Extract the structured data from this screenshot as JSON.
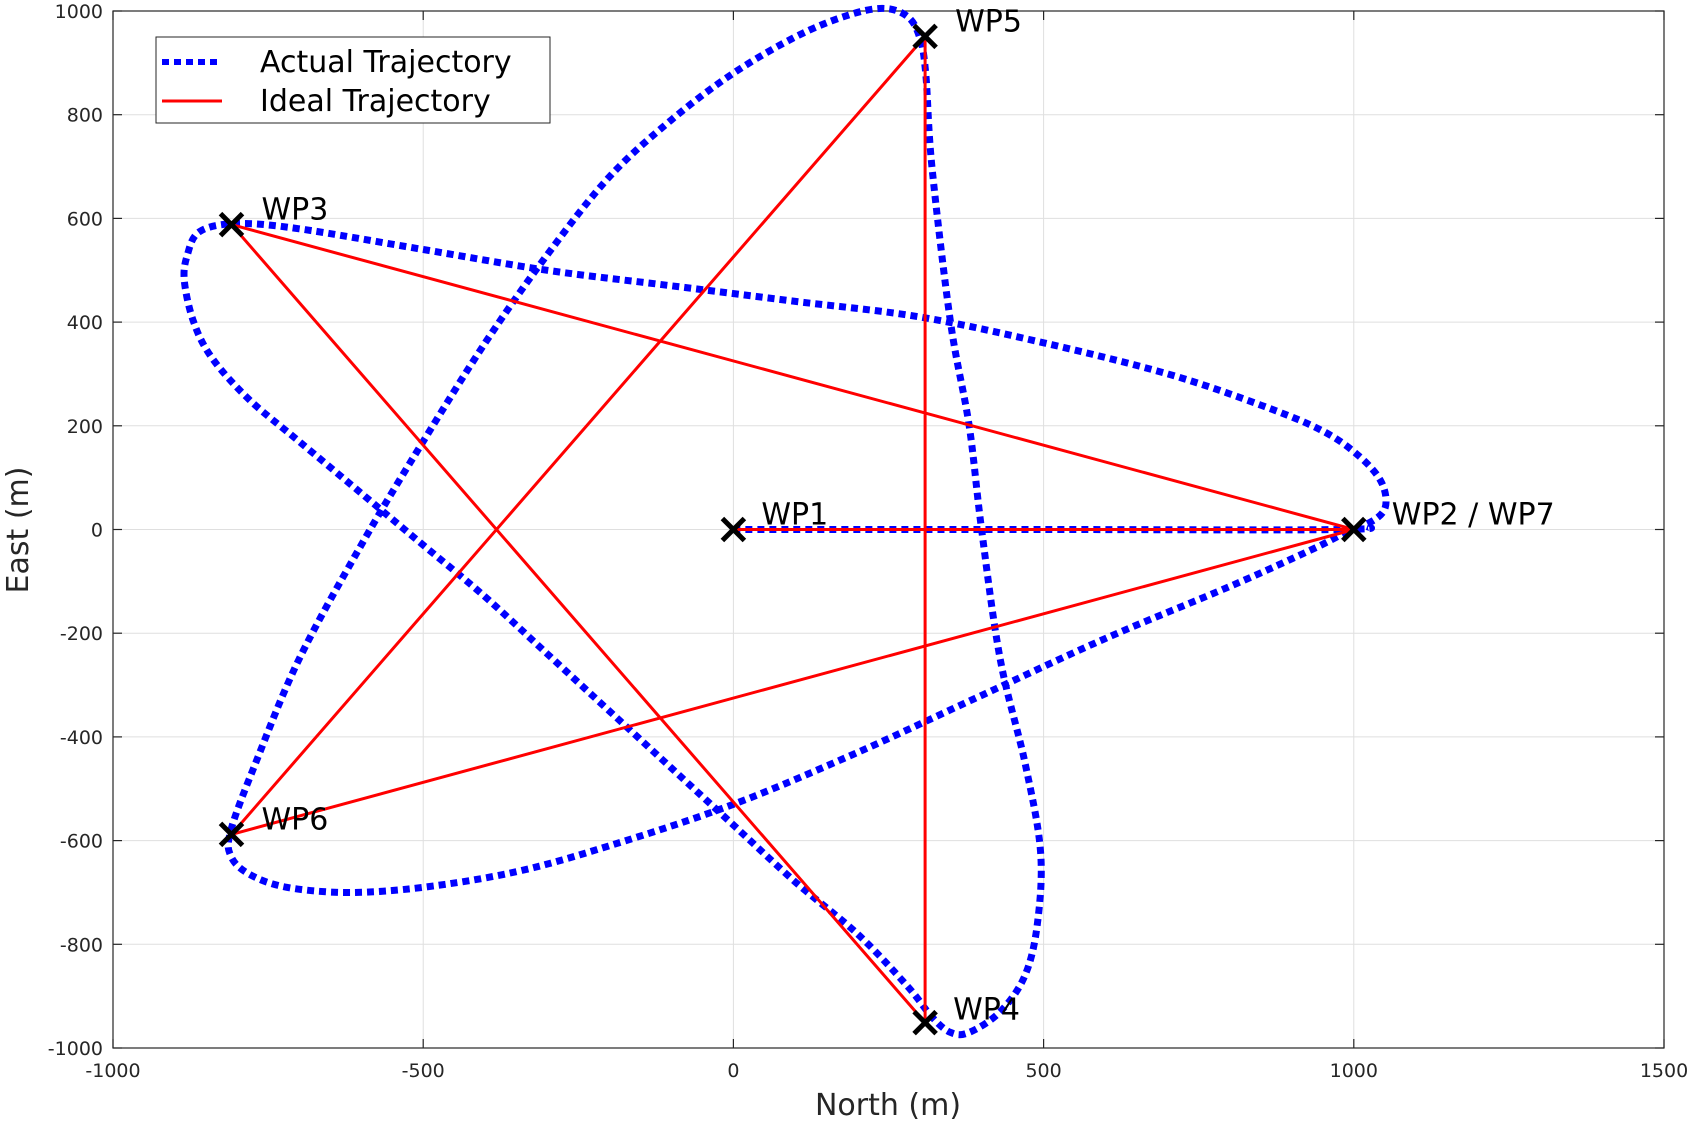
{
  "chart_data": {
    "type": "line",
    "title": "",
    "xlabel": "North (m)",
    "ylabel": "East (m)",
    "xlim": [
      -1000,
      1500
    ],
    "ylim": [
      -1000,
      1000
    ],
    "xticks": [
      -1000,
      -500,
      0,
      500,
      1000,
      1500
    ],
    "yticks": [
      -1000,
      -800,
      -600,
      -400,
      -200,
      0,
      200,
      400,
      600,
      800,
      1000
    ],
    "grid": true,
    "legend_position": "top-left",
    "legend": [
      {
        "label": "Actual Trajectory",
        "color": "#0000ff",
        "style": "dotted"
      },
      {
        "label": "Ideal Trajectory",
        "color": "#ff0000",
        "style": "solid"
      }
    ],
    "series": [
      {
        "name": "Actual Trajectory",
        "color": "#0000ff",
        "points": [
          [
            0,
            0
          ],
          [
            500,
            0
          ],
          [
            980,
            0
          ],
          [
            1020,
            10
          ],
          [
            1050,
            40
          ],
          [
            1045,
            90
          ],
          [
            1010,
            140
          ],
          [
            950,
            190
          ],
          [
            850,
            240
          ],
          [
            700,
            300
          ],
          [
            500,
            360
          ],
          [
            300,
            410
          ],
          [
            100,
            440
          ],
          [
            -100,
            470
          ],
          [
            -300,
            500
          ],
          [
            -500,
            540
          ],
          [
            -700,
            580
          ],
          [
            -800,
            590
          ],
          [
            -860,
            575
          ],
          [
            -880,
            530
          ],
          [
            -885,
            480
          ],
          [
            -870,
            400
          ],
          [
            -840,
            330
          ],
          [
            -780,
            250
          ],
          [
            -700,
            170
          ],
          [
            -600,
            70
          ],
          [
            -500,
            -30
          ],
          [
            -400,
            -130
          ],
          [
            -300,
            -240
          ],
          [
            -200,
            -350
          ],
          [
            -100,
            -460
          ],
          [
            0,
            -570
          ],
          [
            100,
            -680
          ],
          [
            200,
            -780
          ],
          [
            280,
            -880
          ],
          [
            320,
            -940
          ],
          [
            350,
            -970
          ],
          [
            380,
            -970
          ],
          [
            430,
            -930
          ],
          [
            470,
            -860
          ],
          [
            490,
            -760
          ],
          [
            495,
            -620
          ],
          [
            470,
            -450
          ],
          [
            430,
            -250
          ],
          [
            400,
            0
          ],
          [
            380,
            200
          ],
          [
            350,
            400
          ],
          [
            320,
            700
          ],
          [
            310,
            880
          ],
          [
            300,
            950
          ],
          [
            280,
            990
          ],
          [
            240,
            1005
          ],
          [
            180,
            990
          ],
          [
            100,
            950
          ],
          [
            0,
            880
          ],
          [
            -100,
            790
          ],
          [
            -200,
            680
          ],
          [
            -300,
            530
          ],
          [
            -400,
            360
          ],
          [
            -500,
            170
          ],
          [
            -600,
            -30
          ],
          [
            -700,
            -250
          ],
          [
            -770,
            -450
          ],
          [
            -810,
            -580
          ],
          [
            -810,
            -630
          ],
          [
            -780,
            -665
          ],
          [
            -720,
            -690
          ],
          [
            -620,
            -700
          ],
          [
            -500,
            -690
          ],
          [
            -350,
            -660
          ],
          [
            -200,
            -610
          ],
          [
            0,
            -530
          ],
          [
            200,
            -430
          ],
          [
            400,
            -320
          ],
          [
            600,
            -210
          ],
          [
            800,
            -110
          ],
          [
            930,
            -40
          ],
          [
            980,
            -10
          ],
          [
            1000,
            0
          ]
        ]
      },
      {
        "name": "Ideal Trajectory",
        "color": "#ff0000",
        "points": [
          [
            0,
            0
          ],
          [
            1000,
            0
          ],
          [
            -809,
            588
          ],
          [
            309,
            -951
          ],
          [
            309,
            951
          ],
          [
            -809,
            -588
          ],
          [
            1000,
            0
          ]
        ]
      }
    ],
    "waypoints": [
      {
        "label": "WP1",
        "x": 0,
        "y": 0
      },
      {
        "label": "WP2 / WP7",
        "x": 1000,
        "y": 0
      },
      {
        "label": "WP3",
        "x": -809,
        "y": 588
      },
      {
        "label": "WP4",
        "x": 309,
        "y": -951
      },
      {
        "label": "WP5",
        "x": 309,
        "y": 951
      },
      {
        "label": "WP6",
        "x": -809,
        "y": -588
      }
    ]
  }
}
